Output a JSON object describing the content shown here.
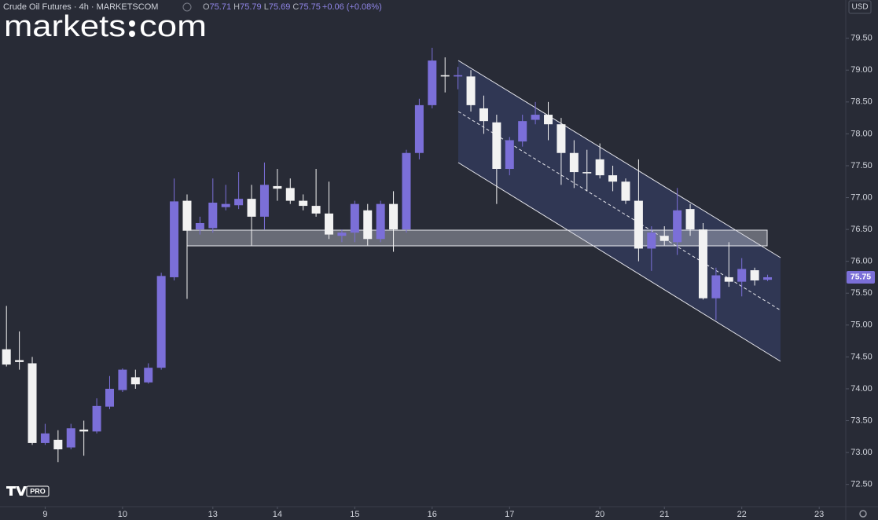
{
  "header": {
    "title": "Crude Oil Futures · 4h · MARKETSCOM",
    "ohlc": [
      {
        "label": "O",
        "value": 75.71
      },
      {
        "label": "H",
        "value": 75.79
      },
      {
        "label": "L",
        "value": 75.69
      },
      {
        "label": "C",
        "value": 75.75
      }
    ],
    "change": "+0.06 (+0.08%)"
  },
  "logo": {
    "word": "markets",
    "suffix": "com"
  },
  "badge": "PRO",
  "currency": "USD",
  "chart_data": {
    "type": "candlestick",
    "x": [
      0,
      1,
      2,
      3,
      4,
      5,
      6,
      7,
      8,
      9,
      10,
      11,
      12,
      13,
      14,
      15,
      16,
      17,
      18,
      19,
      20,
      21,
      22,
      23,
      24,
      25,
      26,
      27,
      28,
      29,
      30,
      31,
      32,
      33,
      34,
      35,
      36,
      37,
      38,
      39,
      40,
      41,
      42,
      43,
      44,
      45,
      46,
      47,
      48,
      49,
      50,
      51,
      52,
      53,
      54,
      55,
      56,
      57,
      58,
      59
    ],
    "open": [
      74.62,
      74.45,
      74.4,
      73.15,
      73.2,
      73.08,
      73.36,
      73.33,
      73.72,
      73.98,
      74.18,
      74.1,
      74.33,
      75.75,
      76.95,
      76.5,
      76.52,
      76.85,
      76.88,
      76.98,
      76.7,
      77.18,
      77.15,
      76.95,
      76.87,
      76.75,
      76.4,
      76.45,
      76.8,
      76.35,
      76.9,
      76.5,
      77.7,
      78.45,
      78.92,
      78.9,
      78.9,
      78.4,
      78.18,
      77.45,
      77.88,
      78.22,
      78.3,
      78.15,
      77.7,
      77.4,
      77.6,
      77.35,
      77.25,
      76.95,
      76.2,
      76.4,
      76.3,
      76.82,
      76.5,
      75.42,
      75.75,
      75.68,
      75.86,
      75.71
    ],
    "high": [
      75.3,
      74.9,
      74.5,
      73.45,
      73.35,
      73.45,
      73.5,
      73.85,
      74.2,
      74.32,
      74.3,
      74.4,
      75.82,
      77.3,
      77.05,
      76.7,
      77.3,
      77.2,
      77.4,
      77.2,
      77.55,
      77.45,
      77.3,
      77.05,
      77.45,
      77.25,
      76.5,
      76.95,
      76.9,
      76.95,
      77.1,
      77.75,
      78.55,
      79.35,
      79.2,
      79.05,
      79.0,
      78.6,
      78.3,
      77.95,
      78.3,
      78.5,
      78.5,
      78.25,
      77.9,
      77.75,
      77.85,
      77.5,
      77.3,
      77.6,
      76.55,
      76.55,
      77.15,
      76.9,
      76.6,
      75.9,
      76.3,
      76.05,
      75.9,
      75.79
    ],
    "low": [
      74.35,
      74.3,
      73.12,
      73.12,
      72.85,
      73.05,
      72.95,
      73.3,
      73.68,
      73.95,
      74.0,
      74.08,
      74.3,
      75.7,
      75.41,
      76.42,
      76.45,
      76.8,
      76.82,
      76.25,
      76.5,
      76.95,
      76.9,
      76.8,
      76.7,
      76.35,
      76.3,
      76.3,
      76.25,
      76.3,
      76.15,
      76.45,
      77.6,
      78.4,
      78.65,
      78.7,
      78.35,
      78.0,
      76.9,
      77.35,
      77.8,
      78.15,
      77.9,
      77.2,
      77.15,
      77.1,
      77.3,
      77.1,
      76.9,
      76.0,
      75.85,
      76.25,
      76.1,
      76.4,
      75.4,
      75.08,
      75.6,
      75.45,
      75.62,
      75.69
    ],
    "close": [
      74.38,
      74.42,
      73.15,
      73.3,
      73.05,
      73.38,
      73.33,
      73.73,
      74.0,
      74.3,
      74.07,
      74.33,
      75.77,
      76.94,
      76.48,
      76.6,
      76.92,
      76.9,
      76.98,
      76.7,
      77.2,
      77.14,
      76.95,
      76.87,
      76.75,
      76.42,
      76.45,
      76.9,
      76.35,
      76.9,
      76.5,
      77.7,
      78.45,
      79.15,
      78.9,
      78.92,
      78.45,
      78.2,
      77.45,
      77.9,
      78.2,
      78.3,
      78.15,
      77.7,
      77.4,
      77.38,
      77.35,
      77.25,
      76.95,
      76.2,
      76.45,
      76.32,
      76.8,
      76.5,
      75.42,
      75.78,
      75.68,
      75.88,
      75.7,
      75.75
    ],
    "up_color": "#7b6fd8",
    "down_color": "#f2f2f2",
    "xlim": [
      -0.5,
      65
    ],
    "xticks": [
      {
        "value": 3,
        "label": "9"
      },
      {
        "value": 9,
        "label": "10"
      },
      {
        "value": 16,
        "label": "13"
      },
      {
        "value": 21,
        "label": "14"
      },
      {
        "value": 27,
        "label": "15"
      },
      {
        "value": 33,
        "label": "16"
      },
      {
        "value": 39,
        "label": "17"
      },
      {
        "value": 46,
        "label": "20"
      },
      {
        "value": 51,
        "label": "21"
      },
      {
        "value": 57,
        "label": "22"
      },
      {
        "value": 63,
        "label": "23"
      }
    ],
    "ylim": [
      72.2,
      80.1
    ],
    "yticks": [
      {
        "value": 72.5,
        "label": "72.50"
      },
      {
        "value": 73,
        "label": "73.00"
      },
      {
        "value": 73.5,
        "label": "73.50"
      },
      {
        "value": 74,
        "label": "74.00"
      },
      {
        "value": 74.5,
        "label": "74.50"
      },
      {
        "value": 75,
        "label": "75.00"
      },
      {
        "value": 75.5,
        "label": "75.50"
      },
      {
        "value": 76,
        "label": "76.00"
      },
      {
        "value": 76.5,
        "label": "76.50"
      },
      {
        "value": 77,
        "label": "77.00"
      },
      {
        "value": 77.5,
        "label": "77.50"
      },
      {
        "value": 78,
        "label": "78.00"
      },
      {
        "value": 78.5,
        "label": "78.50"
      },
      {
        "value": 79,
        "label": "79.00"
      },
      {
        "value": 79.5,
        "label": "79.50"
      }
    ],
    "last_price": 75.75
  }
}
